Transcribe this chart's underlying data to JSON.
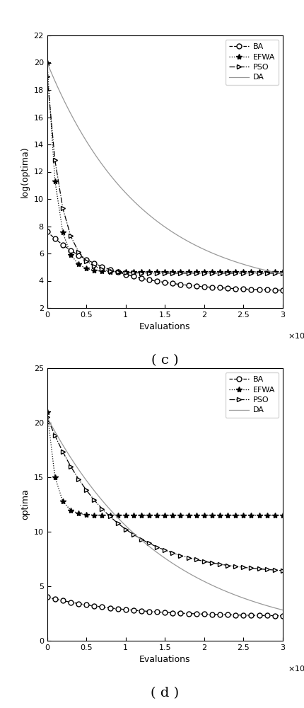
{
  "fig_width": 4.3,
  "fig_height": 10.0,
  "dpi": 100,
  "bg_color": "#ffffff",
  "plot_c": {
    "xlabel": "Evaluations",
    "ylabel": "log(optima)",
    "xlim": [
      0,
      300000
    ],
    "ylim": [
      2,
      22
    ],
    "yticks": [
      2,
      4,
      6,
      8,
      10,
      12,
      14,
      16,
      18,
      20,
      22
    ],
    "caption": "( c )",
    "series": [
      {
        "label": "BA",
        "start": 7.6,
        "flat": 3.2,
        "decay_k": 80000,
        "n_points": 31,
        "color": "#000000",
        "marker": "o",
        "linestyle": "--",
        "open_marker": true
      },
      {
        "label": "EFWA",
        "start": 20.0,
        "flat": 4.65,
        "decay_k": 12000,
        "n_points": 31,
        "color": "#000000",
        "marker": "*",
        "linestyle": ":",
        "open_marker": false
      },
      {
        "label": "PSO",
        "start": 19.0,
        "flat": 4.55,
        "decay_k": 18000,
        "n_points": 31,
        "color": "#000000",
        "marker": ">",
        "linestyle": "-.",
        "open_marker": true
      },
      {
        "label": "DA",
        "start": 20.0,
        "flat": 3.1,
        "decay_k": 120000,
        "n_points": 200,
        "color": "#999999",
        "marker": null,
        "linestyle": "-",
        "open_marker": false
      }
    ]
  },
  "plot_d": {
    "xlabel": "Evaluations",
    "ylabel": "optima",
    "xlim": [
      0,
      300000
    ],
    "ylim": [
      0,
      25
    ],
    "yticks": [
      0,
      5,
      10,
      15,
      20,
      25
    ],
    "caption": "( d )",
    "series": [
      {
        "label": "BA",
        "start": 4.0,
        "flat": 2.2,
        "decay_k": 100000,
        "n_points": 31,
        "color": "#000000",
        "marker": "o",
        "linestyle": "--",
        "open_marker": true
      },
      {
        "label": "EFWA",
        "start": 21.0,
        "flat": 11.5,
        "decay_k": 10000,
        "n_points": 31,
        "color": "#000000",
        "marker": "*",
        "linestyle": ":",
        "open_marker": false
      },
      {
        "label": "PSO",
        "start": 20.5,
        "flat": 6.1,
        "decay_k": 80000,
        "n_points": 31,
        "color": "#000000",
        "marker": ">",
        "linestyle": "-.",
        "open_marker": true
      },
      {
        "label": "DA",
        "start": 20.5,
        "flat": 0.05,
        "decay_k": 150000,
        "n_points": 200,
        "color": "#999999",
        "marker": null,
        "linestyle": "-",
        "open_marker": false
      }
    ]
  }
}
